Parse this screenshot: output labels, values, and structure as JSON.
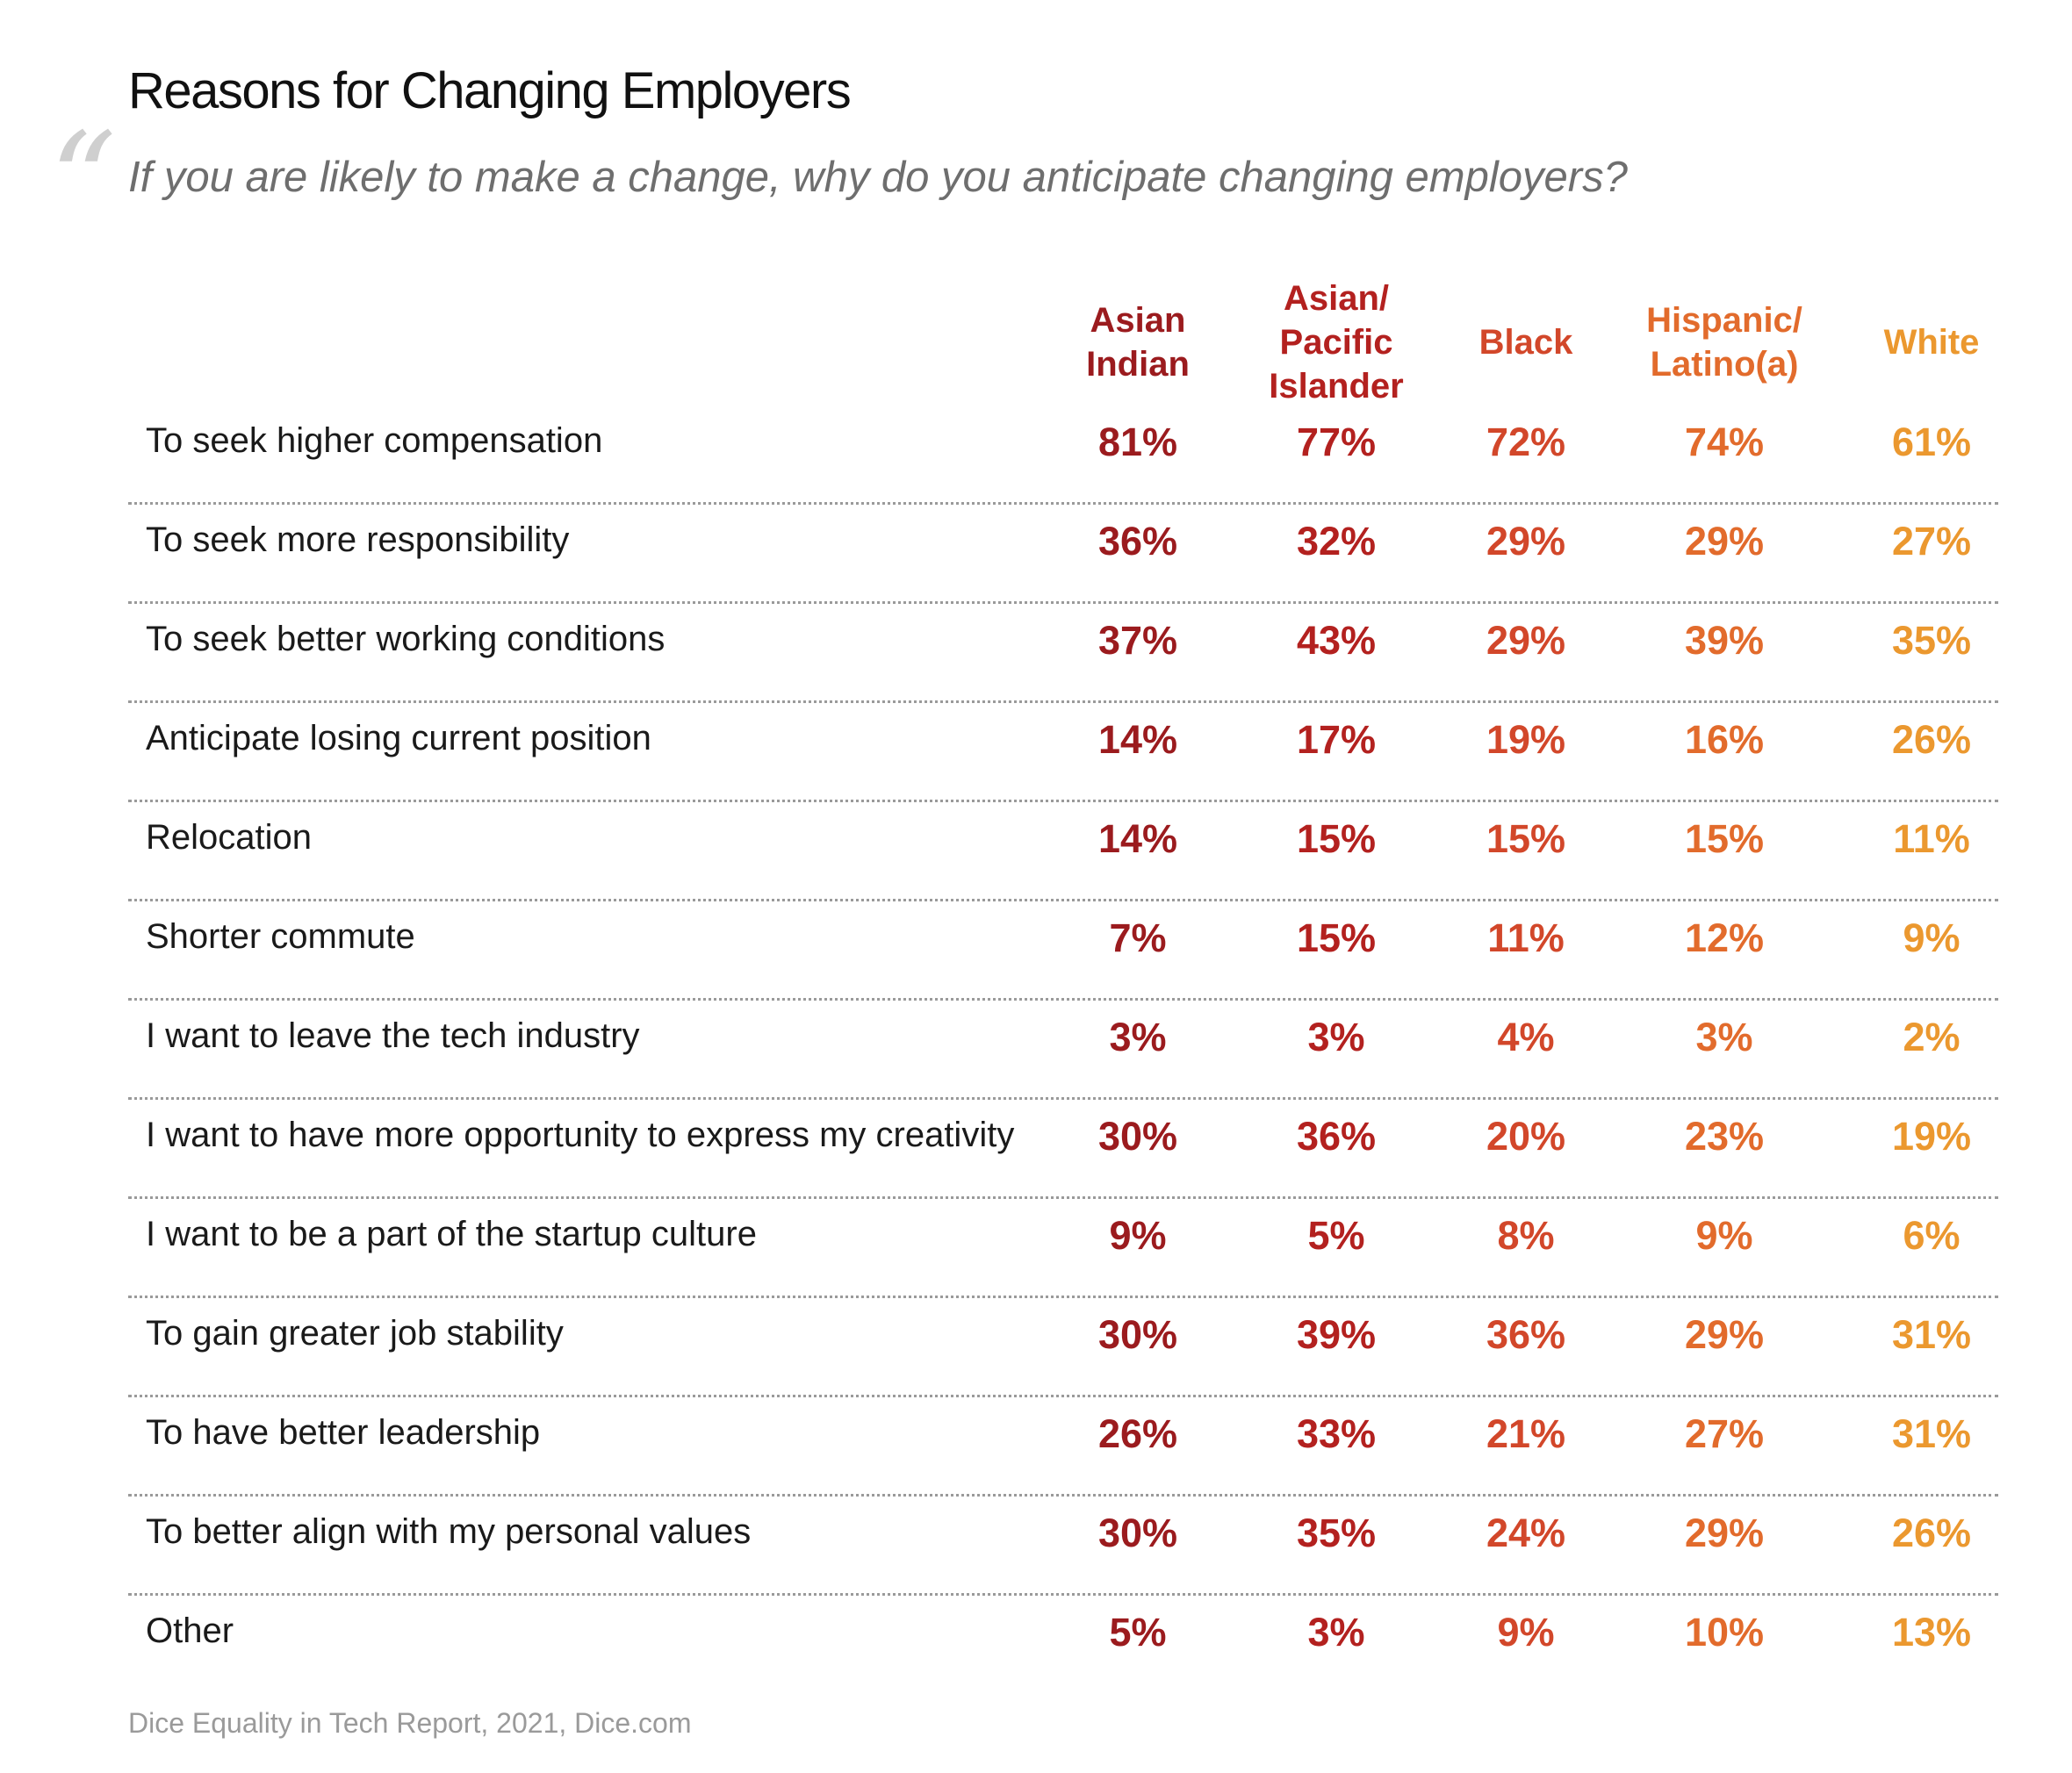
{
  "title": "Reasons for Changing Employers",
  "subtitle": "If you are likely to make a change, why do you anticipate changing employers?",
  "quote_mark": "“",
  "footer": "Dice Equality in Tech Report, 2021, Dice.com",
  "colors": {
    "asian_indian": "#9b1b1e",
    "asian_pacific_islander": "#b3211f",
    "black": "#d2472a",
    "hispanic_latino": "#e26b2c",
    "white": "#eb982f"
  },
  "chart_data": {
    "type": "table",
    "title": "Reasons for Changing Employers",
    "subtitle": "If you are likely to make a change, why do you anticipate changing employers?",
    "columns": [
      "Asian\nIndian",
      "Asian/\nPacific\nIslander",
      "Black",
      "Hispanic/\nLatino(a)",
      "White"
    ],
    "column_colors": [
      "#9b1b1e",
      "#b3211f",
      "#d2472a",
      "#e26b2c",
      "#eb982f"
    ],
    "rows": [
      {
        "label": "To seek higher compensation",
        "values": [
          "81%",
          "77%",
          "72%",
          "74%",
          "61%"
        ]
      },
      {
        "label": "To seek more responsibility",
        "values": [
          "36%",
          "32%",
          "29%",
          "29%",
          "27%"
        ]
      },
      {
        "label": "To seek better working conditions",
        "values": [
          "37%",
          "43%",
          "29%",
          "39%",
          "35%"
        ]
      },
      {
        "label": "Anticipate losing current position",
        "values": [
          "14%",
          "17%",
          "19%",
          "16%",
          "26%"
        ]
      },
      {
        "label": "Relocation",
        "values": [
          "14%",
          "15%",
          "15%",
          "15%",
          "11%"
        ]
      },
      {
        "label": "Shorter commute",
        "values": [
          "7%",
          "15%",
          "11%",
          "12%",
          "9%"
        ]
      },
      {
        "label": "I want to leave the tech industry",
        "values": [
          "3%",
          "3%",
          "4%",
          "3%",
          "2%"
        ]
      },
      {
        "label": "I want to have more opportunity to express my creativity",
        "values": [
          "30%",
          "36%",
          "20%",
          "23%",
          "19%"
        ]
      },
      {
        "label": "I want to be a part of the startup culture",
        "values": [
          "9%",
          "5%",
          "8%",
          "9%",
          "6%"
        ]
      },
      {
        "label": "To gain greater job stability",
        "values": [
          "30%",
          "39%",
          "36%",
          "29%",
          "31%"
        ]
      },
      {
        "label": "To have better leadership",
        "values": [
          "26%",
          "33%",
          "21%",
          "27%",
          "31%"
        ]
      },
      {
        "label": "To better align with my personal values",
        "values": [
          "30%",
          "35%",
          "24%",
          "29%",
          "26%"
        ]
      },
      {
        "label": "Other",
        "values": [
          "5%",
          "3%",
          "9%",
          "10%",
          "13%"
        ]
      }
    ]
  }
}
